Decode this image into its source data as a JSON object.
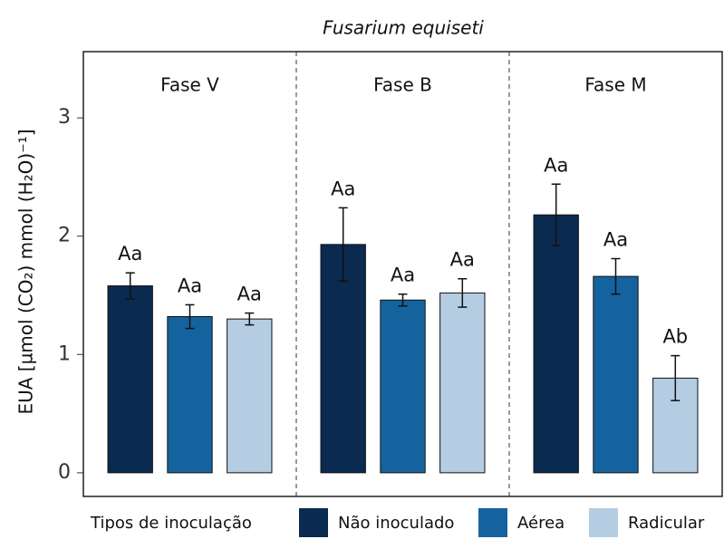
{
  "chart_data": {
    "type": "bar",
    "title": "Fusarium equiseti",
    "ylabel": "EUA [µmol (CO₂) mmol (H₂O)⁻¹]",
    "facets": [
      "Fase V",
      "Fase B",
      "Fase M"
    ],
    "legend_title": "Tipos de inoculação",
    "series": [
      {
        "name": "Não inoculado",
        "color": "#0b2a50",
        "values": [
          1.58,
          1.93,
          2.18
        ],
        "errors": [
          0.11,
          0.31,
          0.26
        ],
        "letters": [
          "Aa",
          "Aa",
          "Aa"
        ]
      },
      {
        "name": "Aérea",
        "color": "#15639e",
        "values": [
          1.32,
          1.46,
          1.66
        ],
        "errors": [
          0.1,
          0.05,
          0.15
        ],
        "letters": [
          "Aa",
          "Aa",
          "Aa"
        ]
      },
      {
        "name": "Radicular",
        "color": "#b5cde3",
        "values": [
          1.3,
          1.52,
          0.8
        ],
        "errors": [
          0.05,
          0.12,
          0.19
        ],
        "letters": [
          "Aa",
          "Aa",
          "Ab"
        ]
      }
    ],
    "ylim": [
      -0.2,
      3.56
    ],
    "yticks": [
      0,
      1,
      2,
      3
    ],
    "grid": false
  }
}
